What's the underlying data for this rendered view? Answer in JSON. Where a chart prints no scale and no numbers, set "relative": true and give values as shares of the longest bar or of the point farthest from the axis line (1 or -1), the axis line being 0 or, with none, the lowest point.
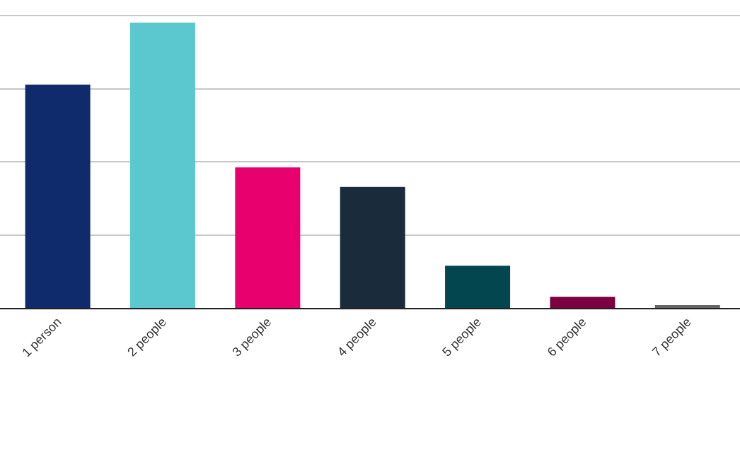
{
  "chart_data": {
    "type": "bar",
    "relative": true,
    "grid": "y",
    "categories": [
      "1 person",
      "2 people",
      "3 people",
      "4 people",
      "5 people",
      "6 people",
      "7 people"
    ],
    "values": [
      0.783,
      1,
      0.493,
      0.424,
      0.148,
      0.039,
      0.01
    ],
    "colors": [
      "#0f2b6b",
      "#5bc8cf",
      "#e8006e",
      "#1a2b3c",
      "#034650",
      "#7a0040",
      "#666666"
    ]
  }
}
